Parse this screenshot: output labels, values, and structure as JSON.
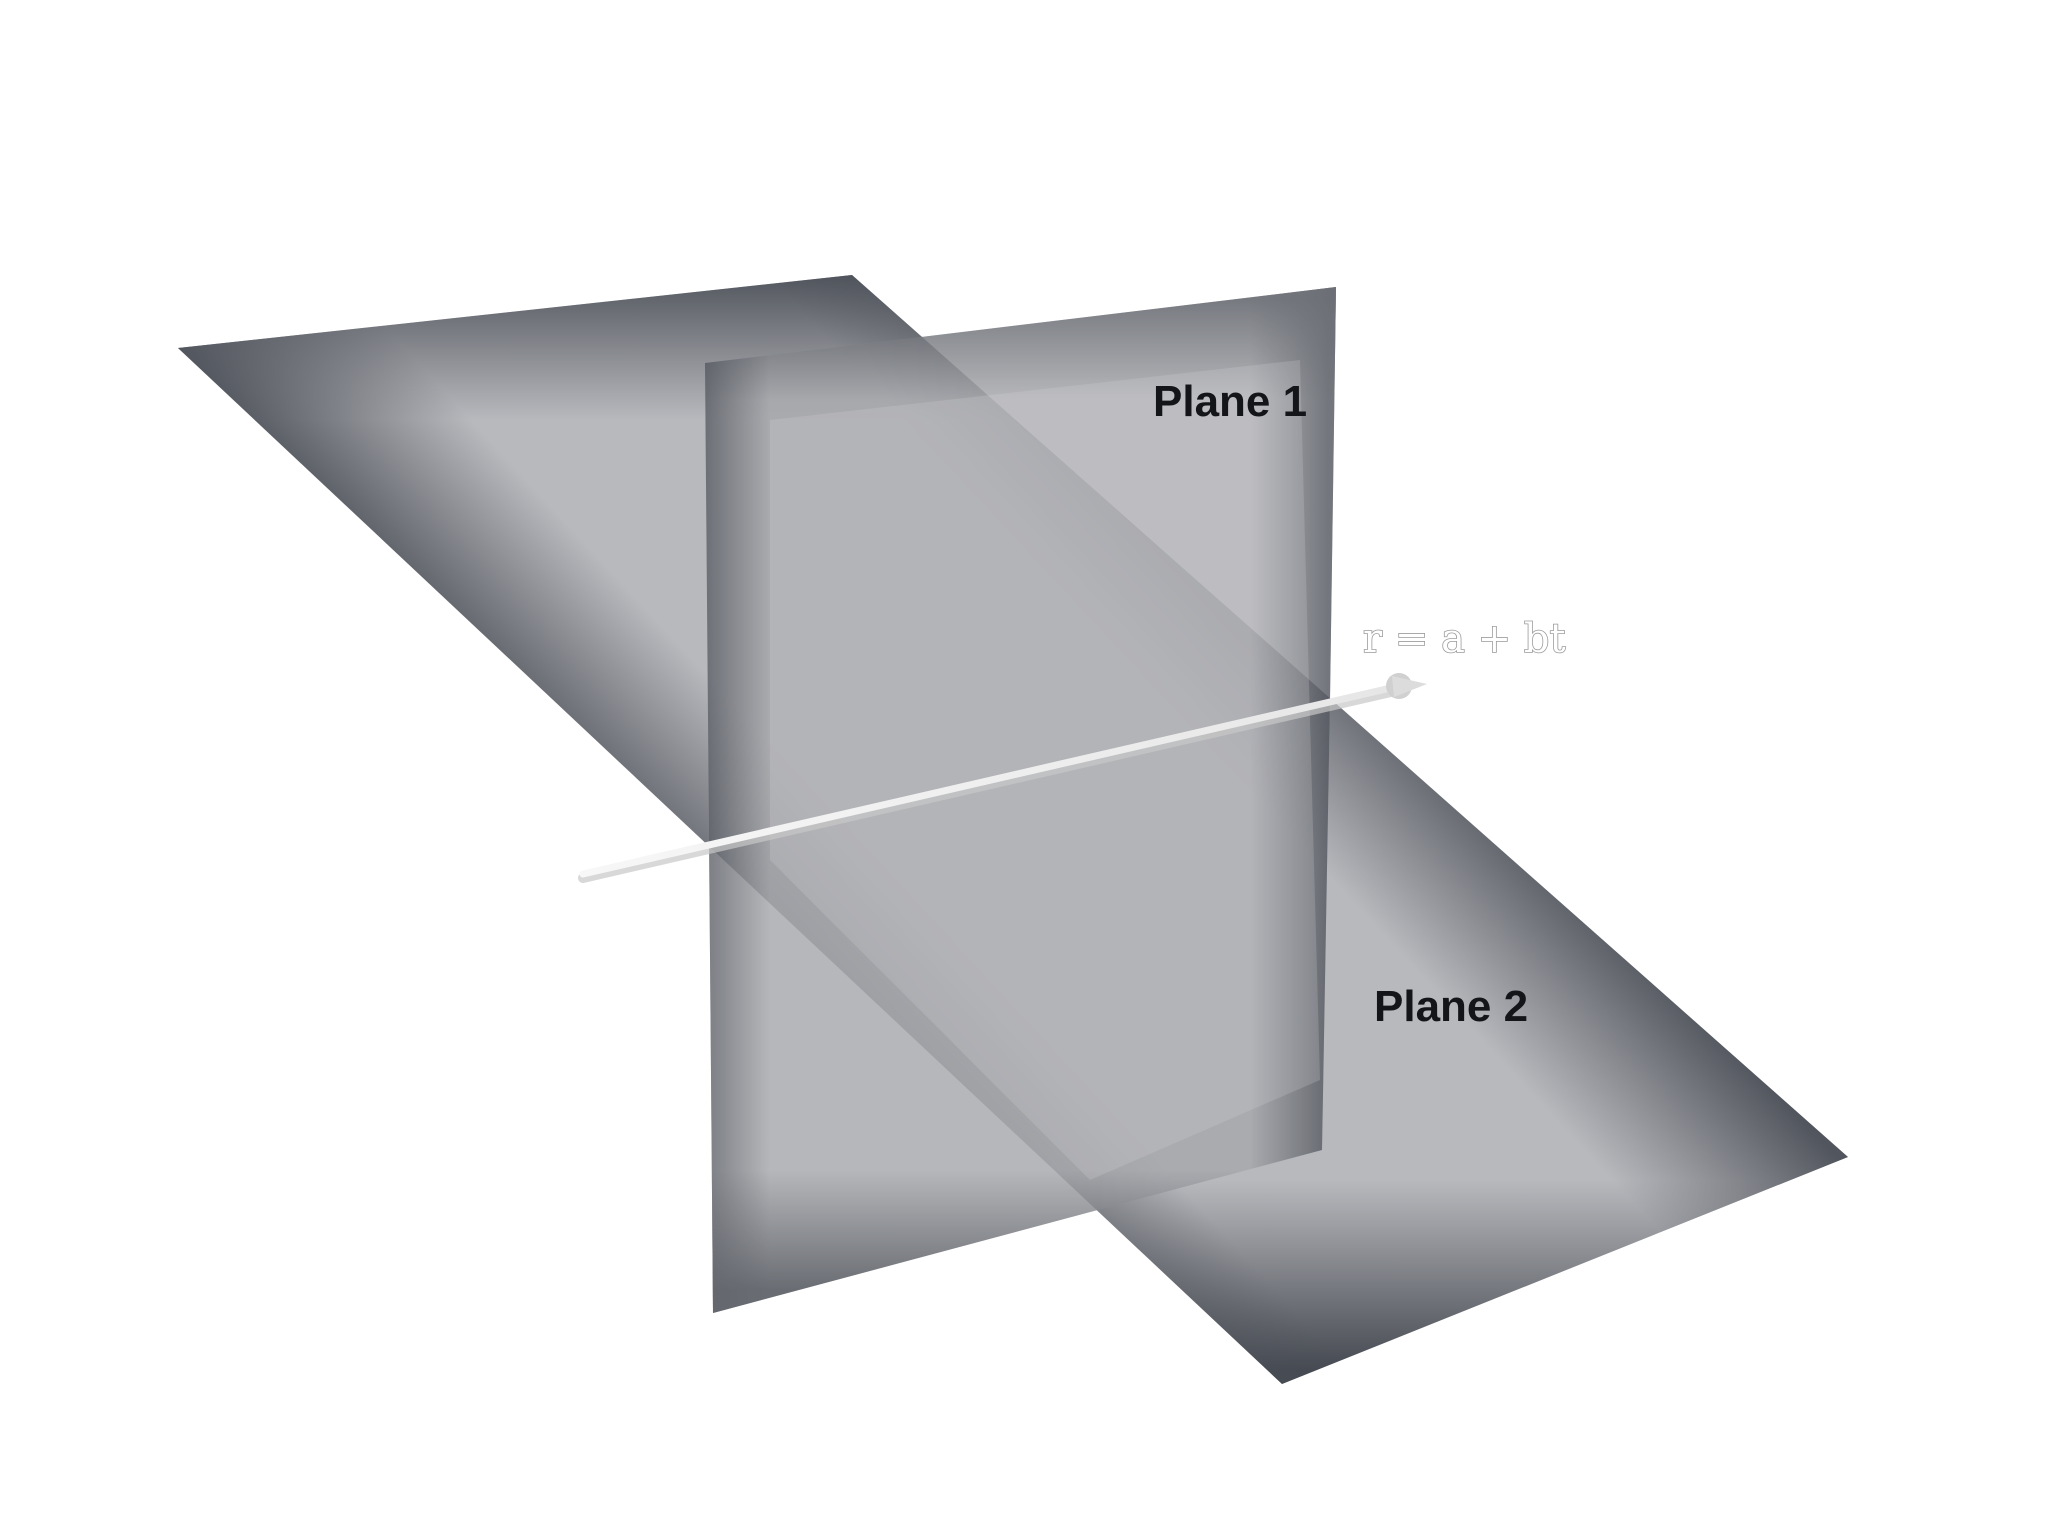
{
  "diagram": {
    "planes": [
      {
        "name": "plane-1",
        "label": "Plane 1"
      },
      {
        "name": "plane-2",
        "label": "Plane 2"
      }
    ],
    "line": {
      "equation": "r = a + bt"
    },
    "colors": {
      "background": "#ffffff",
      "plane_center": "#b9babe",
      "plane_edge": "#4c5058",
      "label_text": "#141519",
      "line": "#f1f1f1",
      "line_shadow": "#c8c8c8",
      "equation_outline": "#9a9a9a"
    }
  }
}
